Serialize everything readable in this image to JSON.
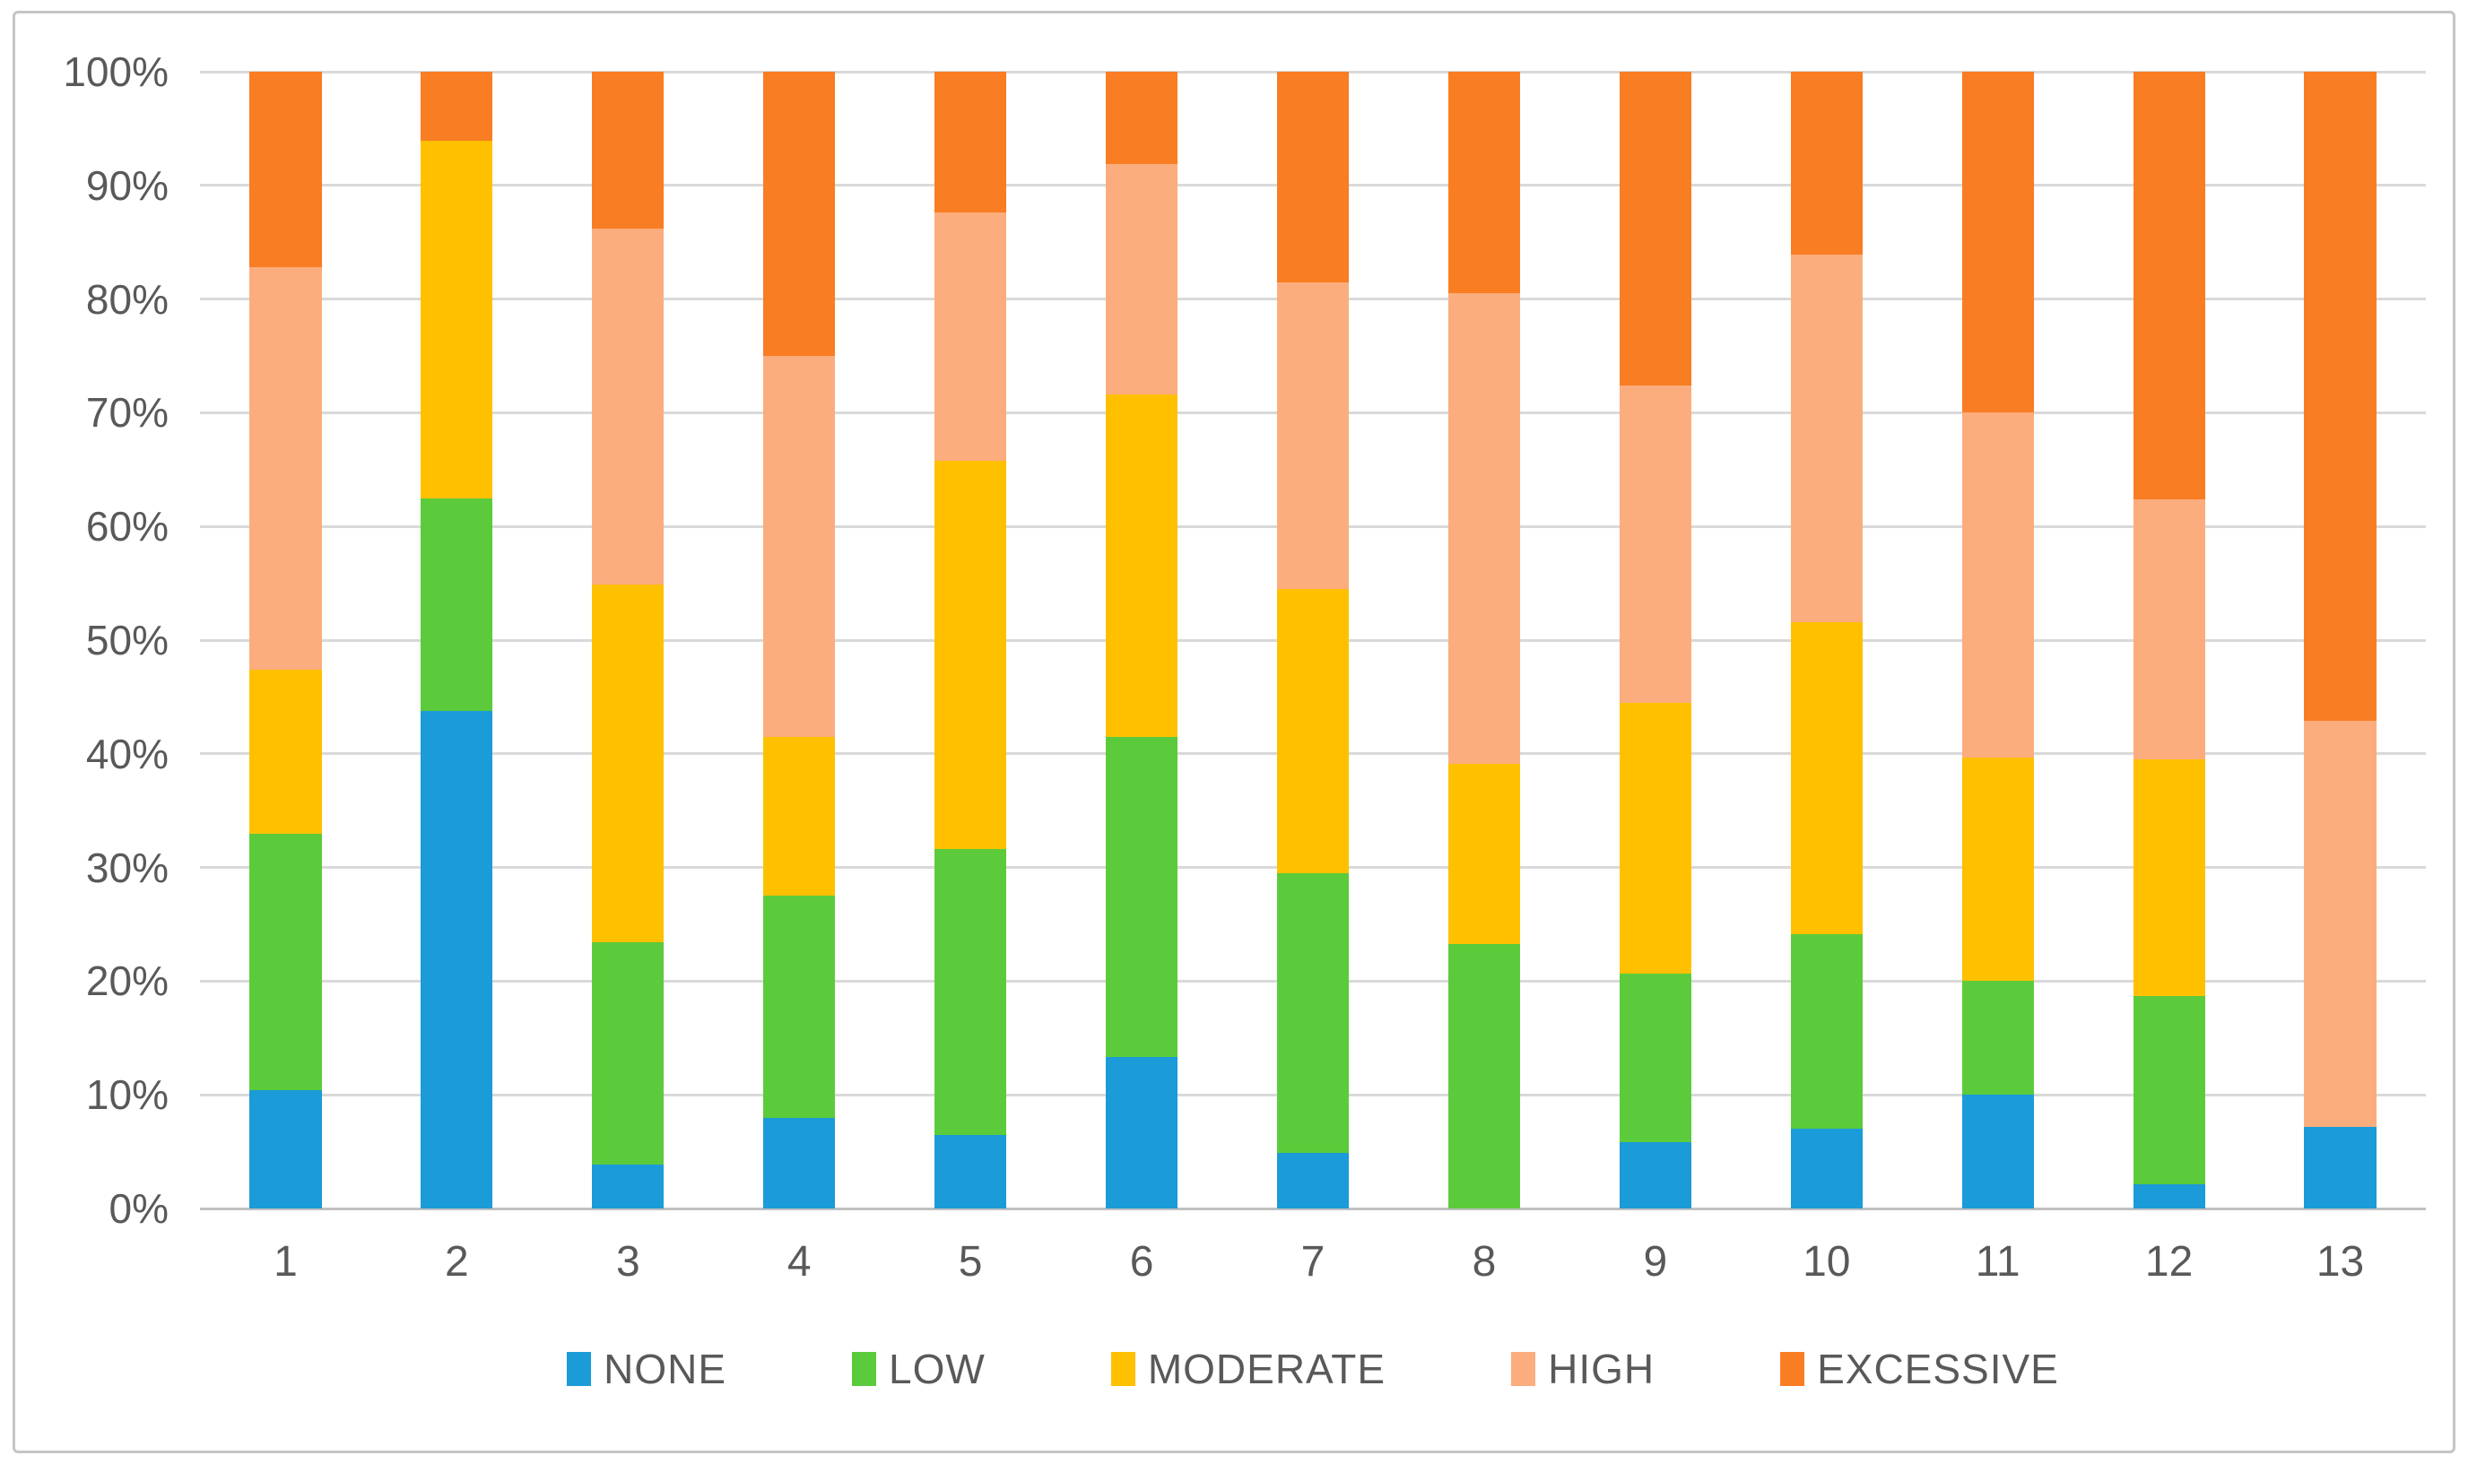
{
  "figure": {
    "background": "#ffffff",
    "frame_border_color": "#c5c5c5"
  },
  "styles": {
    "gridline_color": "#d9d9d9",
    "axis_line_color": "#c0c0c0",
    "label_color": "#595959"
  },
  "chart_data": {
    "type": "bar",
    "variant": "stacked-100-percent",
    "title": "",
    "xlabel": "",
    "ylabel": "",
    "grid": "horizontal",
    "legend_position": "bottom",
    "categories": [
      "1",
      "2",
      "3",
      "4",
      "5",
      "6",
      "7",
      "8",
      "9",
      "10",
      "11",
      "12",
      "13"
    ],
    "y_axis": {
      "min": 0,
      "max": 100,
      "tick_step": 10,
      "tick_labels": [
        "0%",
        "10%",
        "20%",
        "30%",
        "40%",
        "50%",
        "60%",
        "70%",
        "80%",
        "90%",
        "100%"
      ]
    },
    "series": [
      {
        "name": "NONE",
        "color": "#1b9bd8",
        "values": [
          10.4,
          43.8,
          3.9,
          8.0,
          6.5,
          13.3,
          4.9,
          0.0,
          5.8,
          7.0,
          10.0,
          2.1,
          7.2
        ]
      },
      {
        "name": "LOW",
        "color": "#5ccb3b",
        "values": [
          22.6,
          18.7,
          19.5,
          19.5,
          25.1,
          28.2,
          24.6,
          23.3,
          14.9,
          17.1,
          10.0,
          16.6,
          0.0
        ]
      },
      {
        "name": "MODERATE",
        "color": "#ffc000",
        "values": [
          14.4,
          31.4,
          31.5,
          14.0,
          34.2,
          30.1,
          25.0,
          15.8,
          23.8,
          27.5,
          19.7,
          20.8,
          0.0
        ]
      },
      {
        "name": "HIGH",
        "color": "#fbad7e",
        "values": [
          35.4,
          0.0,
          31.3,
          33.5,
          21.8,
          20.3,
          27.0,
          41.4,
          27.9,
          32.3,
          30.3,
          22.9,
          35.7
        ]
      },
      {
        "name": "EXCESSIVE",
        "color": "#f97d23",
        "values": [
          17.2,
          6.1,
          13.8,
          25.0,
          12.4,
          8.1,
          18.5,
          19.5,
          27.6,
          16.1,
          30.0,
          37.6,
          57.1
        ]
      }
    ]
  }
}
